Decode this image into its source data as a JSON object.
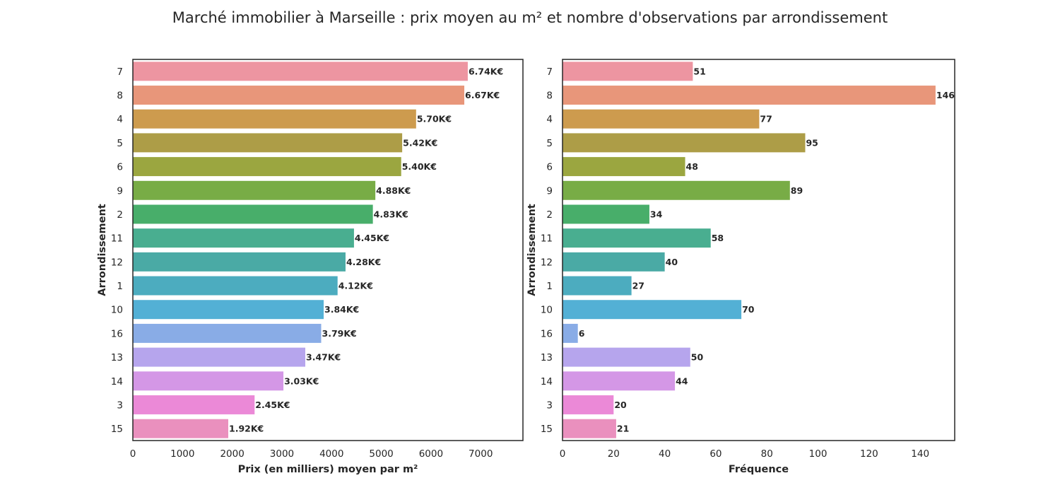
{
  "title": "Marché immobilier à Marseille : prix moyen au m² et nombre d'observations par arrondissement",
  "colors": [
    "#ed95a1",
    "#e8967a",
    "#cd9b4e",
    "#ad9d47",
    "#9ba640",
    "#78ac46",
    "#48ae6a",
    "#49ae90",
    "#4aaaa5",
    "#4cacbf",
    "#53b0d5",
    "#89ace6",
    "#b6a5ed",
    "#d497e6",
    "#eb89d7",
    "#ea90be"
  ],
  "chart_data": [
    {
      "type": "bar",
      "orientation": "horizontal",
      "categories": [
        "7",
        "8",
        "4",
        "5",
        "6",
        "9",
        "2",
        "11",
        "12",
        "1",
        "10",
        "16",
        "13",
        "14",
        "3",
        "15"
      ],
      "values": [
        6740,
        6670,
        5700,
        5420,
        5400,
        4880,
        4830,
        4450,
        4280,
        4120,
        3840,
        3790,
        3470,
        3030,
        2450,
        1920
      ],
      "data_labels": [
        "6.74K€",
        "6.67K€",
        "5.70K€",
        "5.42K€",
        "5.40K€",
        "4.88K€",
        "4.83K€",
        "4.45K€",
        "4.28K€",
        "4.12K€",
        "3.84K€",
        "3.79K€",
        "3.47K€",
        "3.03K€",
        "2.45K€",
        "1.92K€"
      ],
      "xlabel": "Prix (en milliers) moyen par m²",
      "ylabel": "Arrondissement",
      "xlim": [
        0,
        7850
      ],
      "xticks": [
        0,
        1000,
        2000,
        3000,
        4000,
        5000,
        6000,
        7000
      ],
      "grid": false
    },
    {
      "type": "bar",
      "orientation": "horizontal",
      "categories": [
        "7",
        "8",
        "4",
        "5",
        "6",
        "9",
        "2",
        "11",
        "12",
        "1",
        "10",
        "16",
        "13",
        "14",
        "3",
        "15"
      ],
      "values": [
        51,
        146,
        77,
        95,
        48,
        89,
        34,
        58,
        40,
        27,
        70,
        6,
        50,
        44,
        20,
        21
      ],
      "data_labels": [
        "51",
        "146",
        "77",
        "95",
        "48",
        "89",
        "34",
        "58",
        "40",
        "27",
        "70",
        "6",
        "50",
        "44",
        "20",
        "21"
      ],
      "xlabel": "Fréquence",
      "ylabel": "Arrondissement",
      "xlim": [
        0,
        153.5
      ],
      "xticks": [
        0,
        20,
        40,
        60,
        80,
        100,
        120,
        140
      ],
      "grid": false
    }
  ]
}
